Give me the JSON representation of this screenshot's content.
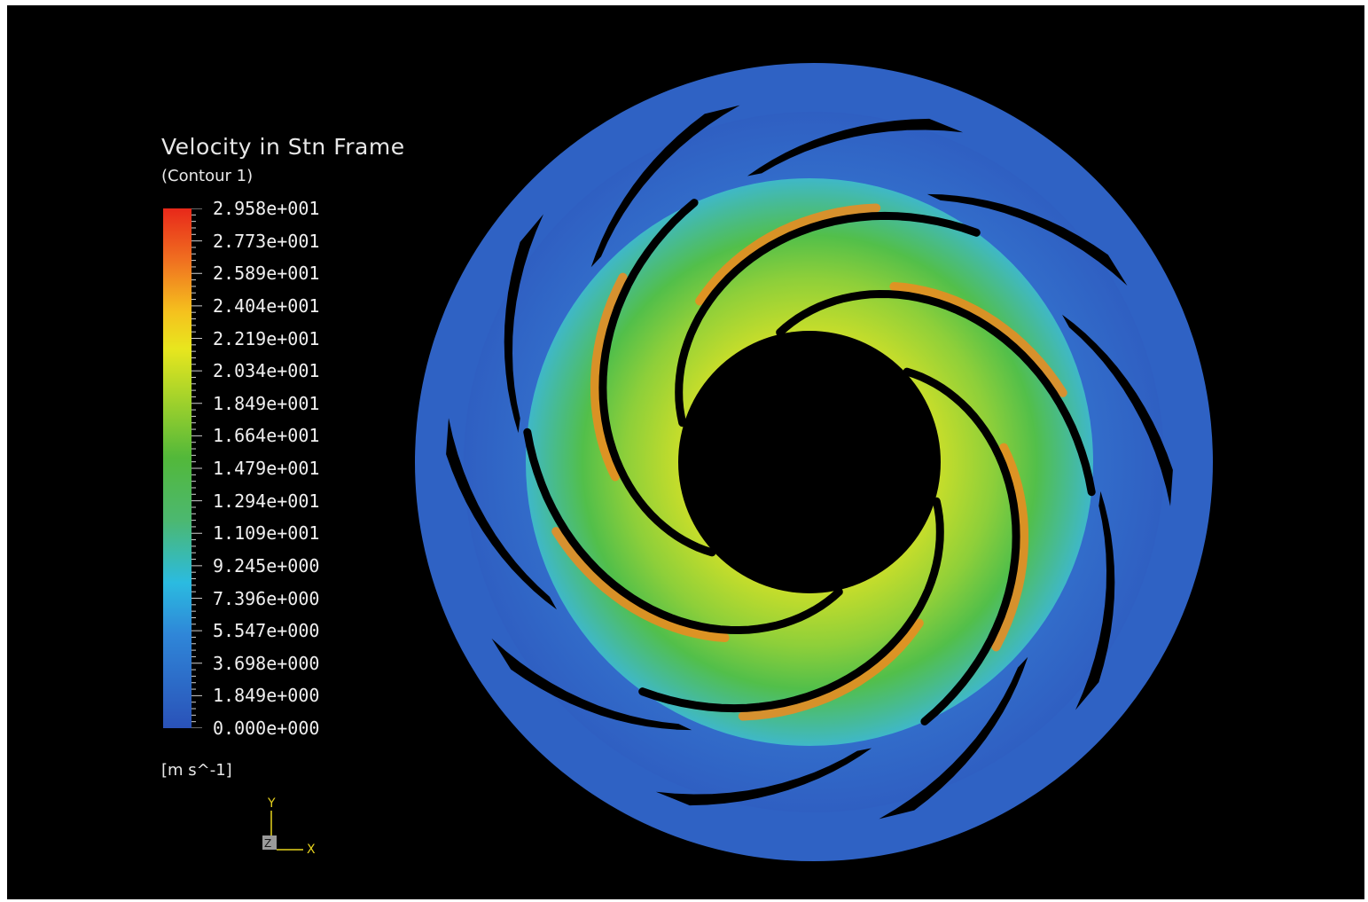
{
  "legend": {
    "title": "Velocity in Stn Frame",
    "subtitle": "(Contour 1)",
    "units": "[m s^-1]",
    "tick_labels": [
      "2.958e+001",
      "2.773e+001",
      "2.589e+001",
      "2.404e+001",
      "2.219e+001",
      "2.034e+001",
      "1.849e+001",
      "1.664e+001",
      "1.479e+001",
      "1.294e+001",
      "1.109e+001",
      "9.245e+000",
      "7.396e+000",
      "5.547e+000",
      "3.698e+000",
      "1.849e+000",
      "0.000e+000"
    ],
    "colors": {
      "max": "#e8281a",
      "high": "#f5a01e",
      "mid_high": "#e8e61e",
      "mid": "#4fb83a",
      "mid_low": "#2bbbe0",
      "low": "#2b5fc0",
      "min": "#2a52b8"
    }
  },
  "triad": {
    "y_label": "Y",
    "x_label": "X",
    "z_label": "Z"
  },
  "scene": {
    "background": "#000000",
    "volute_color": "#2f62c4",
    "impeller_blades": 6,
    "diffuser_vanes": 10
  }
}
